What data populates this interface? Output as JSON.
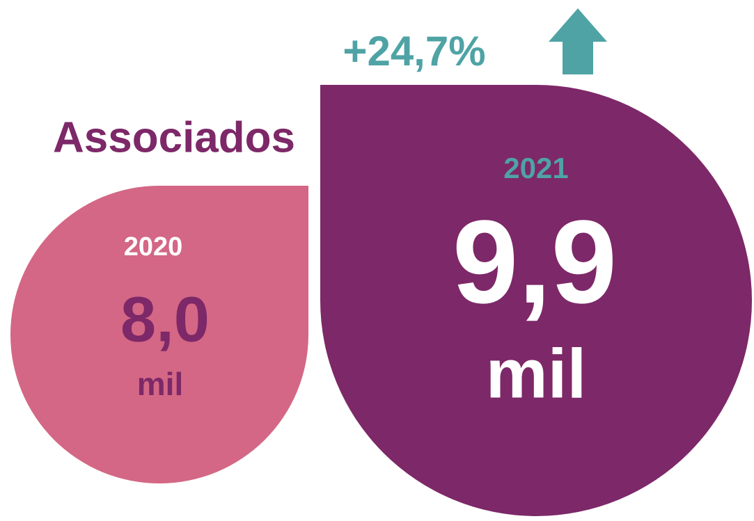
{
  "title": "Associados",
  "change": "+24,7%",
  "items": [
    {
      "year": "2020",
      "value": "8,0",
      "unit": "mil"
    },
    {
      "year": "2021",
      "value": "9,9",
      "unit": "mil"
    }
  ]
}
